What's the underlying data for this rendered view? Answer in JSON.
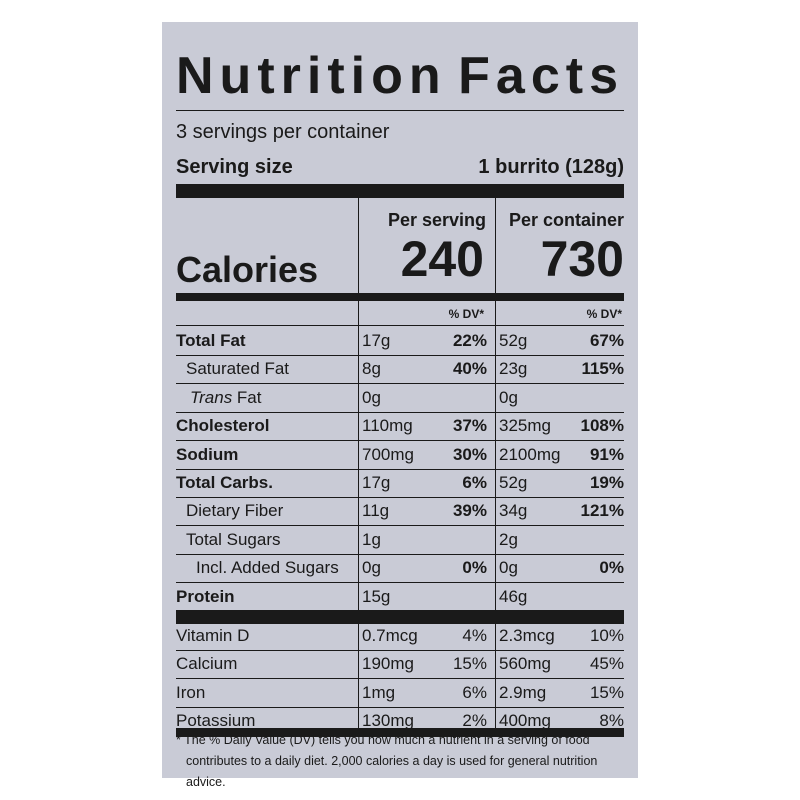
{
  "title": [
    "Nutrition",
    "Facts"
  ],
  "servings_per_container": "3 servings per container",
  "serving_size_label": "Serving size",
  "serving_size_value": "1 burrito (128g)",
  "calories_label": "Calories",
  "per_serving_label": "Per serving",
  "per_container_label": "Per container",
  "calories_serving": "240",
  "calories_container": "730",
  "dv_header": "% DV*",
  "nutrients": [
    {
      "name": "Total Fat",
      "serving": "17g",
      "serving_dv": "22%",
      "container": "52g",
      "container_dv": "67%"
    },
    {
      "name": "Saturated Fat",
      "serving": "8g",
      "serving_dv": "40%",
      "container": "23g",
      "container_dv": "115%"
    },
    {
      "name_italic": "Trans",
      "name_rest": " Fat",
      "serving": "0g",
      "serving_dv": "",
      "container": "0g",
      "container_dv": ""
    },
    {
      "name": "Cholesterol",
      "serving": "110mg",
      "serving_dv": "37%",
      "container": "325mg",
      "container_dv": "108%"
    },
    {
      "name": "Sodium",
      "serving": "700mg",
      "serving_dv": "30%",
      "container": "2100mg",
      "container_dv": "91%"
    },
    {
      "name": "Total Carbs.",
      "serving": "17g",
      "serving_dv": "6%",
      "container": "52g",
      "container_dv": "19%"
    },
    {
      "name": "Dietary Fiber",
      "serving": "11g",
      "serving_dv": "39%",
      "container": "34g",
      "container_dv": "121%"
    },
    {
      "name": "Total Sugars",
      "serving": "1g",
      "serving_dv": "",
      "container": "2g",
      "container_dv": ""
    },
    {
      "name": "Incl. Added Sugars",
      "serving": "0g",
      "serving_dv": "0%",
      "container": "0g",
      "container_dv": "0%"
    },
    {
      "name": "Protein",
      "serving": "15g",
      "serving_dv": "",
      "container": "46g",
      "container_dv": ""
    }
  ],
  "vitamins": [
    {
      "name": "Vitamin D",
      "serving": "0.7mcg",
      "serving_dv": "4%",
      "container": "2.3mcg",
      "container_dv": "10%"
    },
    {
      "name": "Calcium",
      "serving": "190mg",
      "serving_dv": "15%",
      "container": "560mg",
      "container_dv": "45%"
    },
    {
      "name": "Iron",
      "serving": "1mg",
      "serving_dv": "6%",
      "container": "2.9mg",
      "container_dv": "15%"
    },
    {
      "name": "Potassium",
      "serving": "130mg",
      "serving_dv": "2%",
      "container": "400mg",
      "container_dv": "8%"
    }
  ],
  "footnote_line1": "* The % Daily Value (DV) tells you how much a nutrient in a serving of food",
  "footnote_line2": "contributes to a daily diet. 2,000 calories a day is used for general nutrition advice."
}
